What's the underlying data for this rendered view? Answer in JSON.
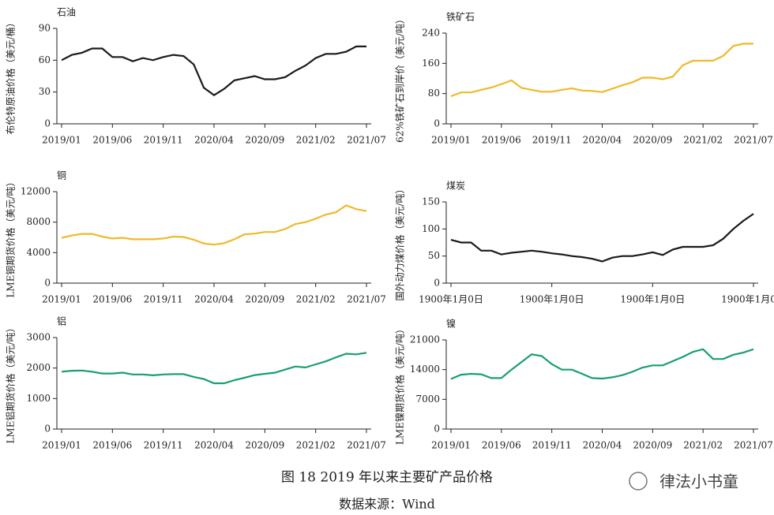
{
  "chart_data": [
    {
      "type": "line",
      "title": "石油",
      "ylabel": "布伦特原油价格（美元/桶）",
      "color": "#1a1a1a",
      "ylim": [
        0,
        90
      ],
      "yticks": [
        0,
        30,
        60,
        90
      ],
      "categories": [
        "2019/01",
        null,
        null,
        null,
        null,
        "2019/06",
        null,
        null,
        null,
        null,
        "2019/11",
        null,
        null,
        null,
        null,
        "2020/04",
        null,
        null,
        null,
        null,
        "2020/09",
        null,
        null,
        null,
        null,
        "2021/02",
        null,
        null,
        null,
        null,
        "2021/07"
      ],
      "values": [
        60,
        65,
        67,
        71,
        71,
        63,
        63,
        59,
        62,
        60,
        63,
        65,
        64,
        56,
        34,
        27,
        33,
        41,
        43,
        45,
        42,
        42,
        44,
        50,
        55,
        62,
        66,
        66,
        68,
        73,
        73
      ]
    },
    {
      "type": "line",
      "title": "铁矿石",
      "ylabel": "62%铁矿石到岸价（美元/吨）",
      "color": "#f0b92a",
      "ylim": [
        0,
        240
      ],
      "yticks": [
        0,
        80,
        160,
        240
      ],
      "categories": [
        "2019/01",
        null,
        null,
        null,
        null,
        "2019/06",
        null,
        null,
        null,
        null,
        "2019/11",
        null,
        null,
        null,
        null,
        "2020/04",
        null,
        null,
        null,
        null,
        "2020/09",
        null,
        null,
        null,
        null,
        "2021/02",
        null,
        null,
        null,
        null,
        "2021/07"
      ],
      "values": [
        73,
        83,
        83,
        90,
        96,
        105,
        115,
        95,
        90,
        85,
        85,
        90,
        94,
        88,
        87,
        84,
        93,
        102,
        110,
        122,
        122,
        118,
        125,
        155,
        167,
        167,
        167,
        180,
        206,
        212,
        212
      ]
    },
    {
      "type": "line",
      "title": "铜",
      "ylabel": "LME铜期货价格（美元/吨）",
      "color": "#f0b92a",
      "ylim": [
        0,
        12000
      ],
      "yticks": [
        0,
        4000,
        8000,
        12000
      ],
      "categories": [
        "2019/01",
        null,
        null,
        null,
        null,
        "2019/06",
        null,
        null,
        null,
        null,
        "2019/11",
        null,
        null,
        null,
        null,
        "2020/04",
        null,
        null,
        null,
        null,
        "2020/09",
        null,
        null,
        null,
        null,
        "2021/02",
        null,
        null,
        null,
        null,
        "2021/07"
      ],
      "values": [
        5950,
        6250,
        6450,
        6450,
        6100,
        5850,
        5950,
        5750,
        5750,
        5750,
        5850,
        6100,
        6050,
        5700,
        5200,
        5050,
        5250,
        5750,
        6400,
        6500,
        6700,
        6700,
        7100,
        7750,
        8000,
        8450,
        9000,
        9300,
        10200,
        9700,
        9450
      ]
    },
    {
      "type": "line",
      "title": "煤炭",
      "ylabel": "国外动力煤价格（美元/吨）",
      "color": "#1a1a1a",
      "ylim": [
        0,
        150
      ],
      "yticks": [
        0,
        50,
        100,
        150
      ],
      "categories": [
        "1900年1月0日",
        null,
        null,
        null,
        null,
        null,
        null,
        null,
        null,
        null,
        "1900年1月0日",
        null,
        null,
        null,
        null,
        null,
        null,
        null,
        null,
        null,
        "1900年1月0日",
        null,
        null,
        null,
        null,
        null,
        null,
        null,
        null,
        null,
        "1900年1月0日"
      ],
      "values": [
        80,
        75,
        75,
        60,
        60,
        53,
        56,
        58,
        60,
        58,
        55,
        53,
        50,
        48,
        45,
        40,
        47,
        50,
        50,
        53,
        57,
        52,
        62,
        67,
        67,
        67,
        70,
        82,
        100,
        115,
        128
      ]
    },
    {
      "type": "line",
      "title": "铝",
      "ylabel": "LME铝期货价格（美元/吨）",
      "color": "#17a06b",
      "ylim": [
        0,
        3000
      ],
      "yticks": [
        0,
        1000,
        2000,
        3000
      ],
      "categories": [
        "2019/01",
        null,
        null,
        null,
        null,
        "2019/06",
        null,
        null,
        null,
        null,
        "2019/11",
        null,
        null,
        null,
        null,
        "2020/04",
        null,
        null,
        null,
        null,
        "2020/09",
        null,
        null,
        null,
        null,
        "2021/02",
        null,
        null,
        null,
        null,
        "2021/07"
      ],
      "values": [
        1880,
        1910,
        1920,
        1880,
        1820,
        1820,
        1850,
        1790,
        1790,
        1760,
        1790,
        1800,
        1800,
        1710,
        1640,
        1500,
        1500,
        1600,
        1680,
        1770,
        1810,
        1850,
        1950,
        2050,
        2020,
        2120,
        2220,
        2350,
        2470,
        2450,
        2500
      ]
    },
    {
      "type": "line",
      "title": "镍",
      "ylabel": "LME镍期货价格（美元/吨）",
      "color": "#17a06b",
      "ylim": [
        0,
        21000
      ],
      "yticks": [
        0,
        7000,
        14000,
        21000
      ],
      "categories": [
        "2019/01",
        null,
        null,
        null,
        null,
        "2019/06",
        null,
        null,
        null,
        null,
        "2019/11",
        null,
        null,
        null,
        null,
        "2020/04",
        null,
        null,
        null,
        null,
        "2020/09",
        null,
        null,
        null,
        null,
        "2021/02",
        null,
        null,
        null,
        null,
        "2021/07"
      ],
      "values": [
        11800,
        12800,
        13000,
        12900,
        12000,
        12000,
        14000,
        15800,
        17600,
        17200,
        15300,
        14000,
        14000,
        13000,
        12000,
        11900,
        12200,
        12700,
        13500,
        14500,
        15000,
        15000,
        16000,
        17000,
        18200,
        18800,
        16500,
        16500,
        17500,
        18000,
        18800
      ]
    }
  ],
  "caption": "图 18 2019 年以来主要矿产品价格",
  "source": "数据来源：Wind",
  "watermark": "律法小书童"
}
